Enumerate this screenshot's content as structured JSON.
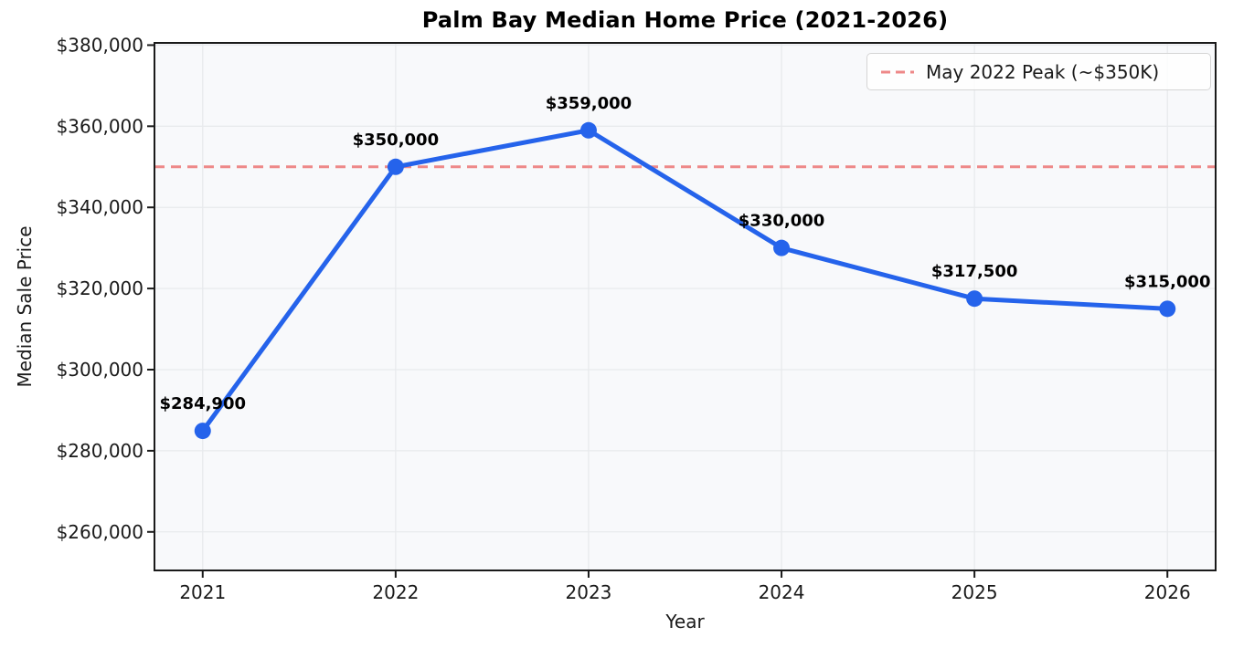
{
  "chart_data": {
    "type": "line",
    "title": "Palm Bay Median Home Price (2021-2026)",
    "xlabel": "Year",
    "ylabel": "Median Sale Price",
    "x": [
      2021,
      2022,
      2023,
      2024,
      2025,
      2026
    ],
    "x_tick_labels": [
      "2021",
      "2022",
      "2023",
      "2024",
      "2025",
      "2026"
    ],
    "values": [
      284900,
      350000,
      359000,
      330000,
      317500,
      315000
    ],
    "point_labels": [
      "$284,900",
      "$350,000",
      "$359,000",
      "$330,000",
      "$317,500",
      "$315,000"
    ],
    "y_ticks": [
      260000,
      280000,
      300000,
      320000,
      340000,
      360000,
      380000
    ],
    "y_tick_labels": [
      "$260,000",
      "$280,000",
      "$300,000",
      "$320,000",
      "$340,000",
      "$360,000",
      "$380,000"
    ],
    "ylim": [
      250500,
      380550
    ],
    "grid": true,
    "legend_position": "upper right",
    "colors": {
      "series": "#2563eb",
      "grid": "#e8eaed",
      "plot_background": "#f8f9fb",
      "spine": "#1a1a1a",
      "text": "#1a1a1a"
    },
    "reference_line": {
      "value": 350000,
      "style": "dashed",
      "color": "#ee8888",
      "label": "May 2022 Peak (~$350K)"
    }
  }
}
